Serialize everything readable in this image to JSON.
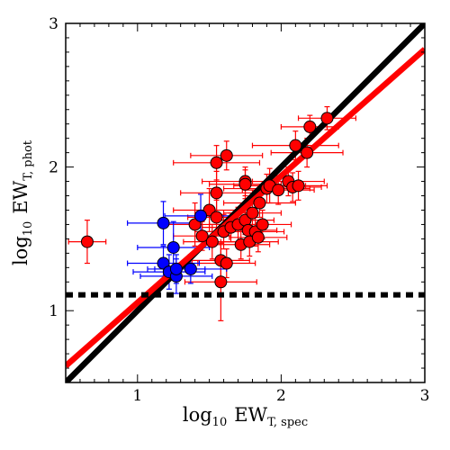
{
  "chart_data": {
    "type": "scatter",
    "xlabel": {
      "main": "log",
      "base": "10",
      "quantity": "EW",
      "subscript": "T, spec"
    },
    "ylabel": {
      "main": "log",
      "base": "10",
      "quantity": "EW",
      "subscript": "T, phot"
    },
    "xlim": [
      0.5,
      3.0
    ],
    "ylim": [
      0.5,
      3.0
    ],
    "xticks": [
      1,
      2,
      3
    ],
    "yticks": [
      1,
      2,
      3
    ],
    "grid": false,
    "lines": [
      {
        "color": "#000000",
        "style": "solid",
        "points": [
          [
            0.5,
            0.5
          ],
          [
            3.0,
            3.0
          ]
        ]
      },
      {
        "color": "#ff0000",
        "style": "solid",
        "points": [
          [
            0.5,
            0.615
          ],
          [
            3.0,
            2.82
          ]
        ]
      },
      {
        "color": "#000000",
        "style": "dotted",
        "points": [
          [
            0.5,
            1.11
          ],
          [
            3.0,
            1.11
          ]
        ]
      }
    ],
    "series": [
      {
        "color": "#ff0000",
        "points": [
          {
            "x": 0.65,
            "y": 1.48,
            "xerr": 0.13,
            "yerr": 0.15
          },
          {
            "x": 1.4,
            "y": 1.6,
            "xerr": 0.25,
            "yerr": 0.15
          },
          {
            "x": 1.45,
            "y": 1.52,
            "xerr": 0.2,
            "yerr": 0.1
          },
          {
            "x": 1.5,
            "y": 1.7,
            "xerr": 0.25,
            "yerr": 0.15
          },
          {
            "x": 1.52,
            "y": 1.48,
            "xerr": 0.2,
            "yerr": 0.12
          },
          {
            "x": 1.55,
            "y": 2.03,
            "xerr": 0.3,
            "yerr": 0.12
          },
          {
            "x": 1.55,
            "y": 1.82,
            "xerr": 0.25,
            "yerr": 0.15
          },
          {
            "x": 1.55,
            "y": 1.65,
            "xerr": 0.2,
            "yerr": 0.12
          },
          {
            "x": 1.58,
            "y": 1.35,
            "xerr": 0.2,
            "yerr": 0.12
          },
          {
            "x": 1.58,
            "y": 1.2,
            "xerr": 0.25,
            "yerr": 0.27
          },
          {
            "x": 1.6,
            "y": 1.55,
            "xerr": 0.2,
            "yerr": 0.12
          },
          {
            "x": 1.62,
            "y": 2.08,
            "xerr": 0.25,
            "yerr": 0.1
          },
          {
            "x": 1.62,
            "y": 1.33,
            "xerr": 0.2,
            "yerr": 0.1
          },
          {
            "x": 1.65,
            "y": 1.58,
            "xerr": 0.2,
            "yerr": 0.1
          },
          {
            "x": 1.7,
            "y": 1.6,
            "xerr": 0.2,
            "yerr": 0.12
          },
          {
            "x": 1.72,
            "y": 1.46,
            "xerr": 0.2,
            "yerr": 0.1
          },
          {
            "x": 1.75,
            "y": 1.9,
            "xerr": 0.3,
            "yerr": 0.1
          },
          {
            "x": 1.75,
            "y": 1.88,
            "xerr": 0.25,
            "yerr": 0.1
          },
          {
            "x": 1.75,
            "y": 1.63,
            "xerr": 0.2,
            "yerr": 0.1
          },
          {
            "x": 1.77,
            "y": 1.56,
            "xerr": 0.2,
            "yerr": 0.1
          },
          {
            "x": 1.78,
            "y": 1.48,
            "xerr": 0.2,
            "yerr": 0.1
          },
          {
            "x": 1.8,
            "y": 1.68,
            "xerr": 0.2,
            "yerr": 0.1
          },
          {
            "x": 1.82,
            "y": 1.55,
            "xerr": 0.2,
            "yerr": 0.1
          },
          {
            "x": 1.84,
            "y": 1.51,
            "xerr": 0.2,
            "yerr": 0.1
          },
          {
            "x": 1.85,
            "y": 1.75,
            "xerr": 0.25,
            "yerr": 0.1
          },
          {
            "x": 1.87,
            "y": 1.6,
            "xerr": 0.2,
            "yerr": 0.1
          },
          {
            "x": 1.9,
            "y": 1.85,
            "xerr": 0.3,
            "yerr": 0.1
          },
          {
            "x": 1.92,
            "y": 1.87,
            "xerr": 0.25,
            "yerr": 0.12
          },
          {
            "x": 1.98,
            "y": 1.84,
            "xerr": 0.25,
            "yerr": 0.1
          },
          {
            "x": 2.05,
            "y": 1.9,
            "xerr": 0.25,
            "yerr": 0.1
          },
          {
            "x": 2.08,
            "y": 1.86,
            "xerr": 0.2,
            "yerr": 0.1
          },
          {
            "x": 2.1,
            "y": 2.15,
            "xerr": 0.3,
            "yerr": 0.1
          },
          {
            "x": 2.12,
            "y": 1.87,
            "xerr": 0.2,
            "yerr": 0.1
          },
          {
            "x": 2.18,
            "y": 2.1,
            "xerr": 0.25,
            "yerr": 0.1
          },
          {
            "x": 2.2,
            "y": 2.28,
            "xerr": 0.2,
            "yerr": 0.08
          },
          {
            "x": 2.32,
            "y": 2.34,
            "xerr": 0.2,
            "yerr": 0.08
          }
        ]
      },
      {
        "color": "#0000ff",
        "points": [
          {
            "x": 1.18,
            "y": 1.61,
            "xerr": 0.25,
            "yerr": 0.15
          },
          {
            "x": 1.18,
            "y": 1.33,
            "xerr": 0.25,
            "yerr": 0.12
          },
          {
            "x": 1.22,
            "y": 1.27,
            "xerr": 0.25,
            "yerr": 0.12
          },
          {
            "x": 1.25,
            "y": 1.44,
            "xerr": 0.25,
            "yerr": 0.18
          },
          {
            "x": 1.27,
            "y": 1.24,
            "xerr": 0.25,
            "yerr": 0.12
          },
          {
            "x": 1.27,
            "y": 1.29,
            "xerr": 0.2,
            "yerr": 0.1
          },
          {
            "x": 1.37,
            "y": 1.29,
            "xerr": 0.25,
            "yerr": 0.1
          },
          {
            "x": 1.44,
            "y": 1.66,
            "xerr": 0.25,
            "yerr": 0.15
          }
        ]
      }
    ]
  }
}
